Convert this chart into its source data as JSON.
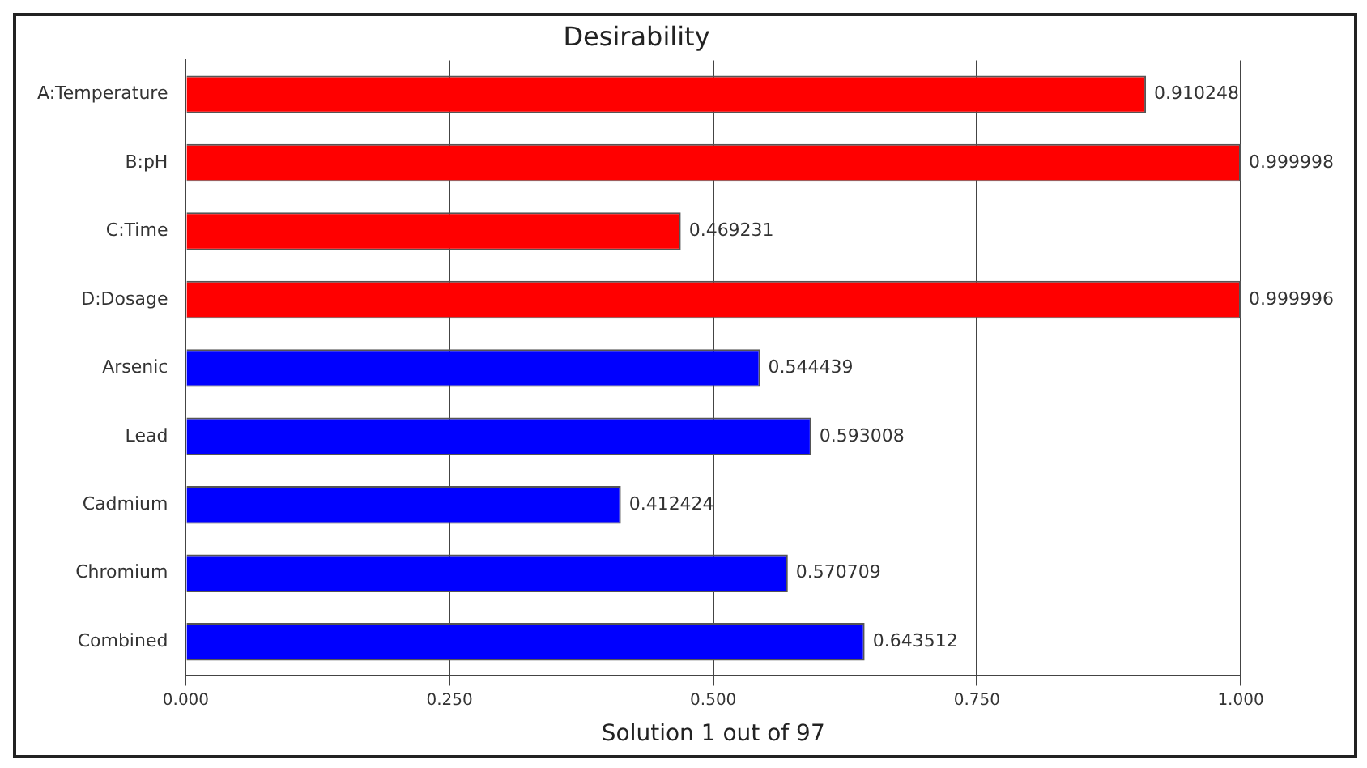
{
  "chart_data": {
    "type": "bar",
    "orientation": "horizontal",
    "title": "Desirability",
    "xlabel": "Solution 1 out of 97",
    "categories": [
      "A:Temperature",
      "B:pH",
      "C:Time",
      "D:Dosage",
      "Arsenic",
      "Lead",
      "Cadmium",
      "Chromium",
      "Combined"
    ],
    "values": [
      0.910248,
      0.999998,
      0.469231,
      0.999996,
      0.544439,
      0.593008,
      0.412424,
      0.570709,
      0.643512
    ],
    "colors": [
      "#ff0000",
      "#ff0000",
      "#ff0000",
      "#ff0000",
      "#0000ff",
      "#0000ff",
      "#0000ff",
      "#0000ff",
      "#0000ff"
    ],
    "xlim": [
      0,
      1
    ],
    "xticks": [
      {
        "value": 0,
        "label": "0.000"
      },
      {
        "value": 0.25,
        "label": "0.250"
      },
      {
        "value": 0.5,
        "label": "0.500"
      },
      {
        "value": 0.75,
        "label": "0.750"
      },
      {
        "value": 1,
        "label": "1.000"
      }
    ],
    "grid": "x",
    "data_labels": true,
    "legend": false
  }
}
